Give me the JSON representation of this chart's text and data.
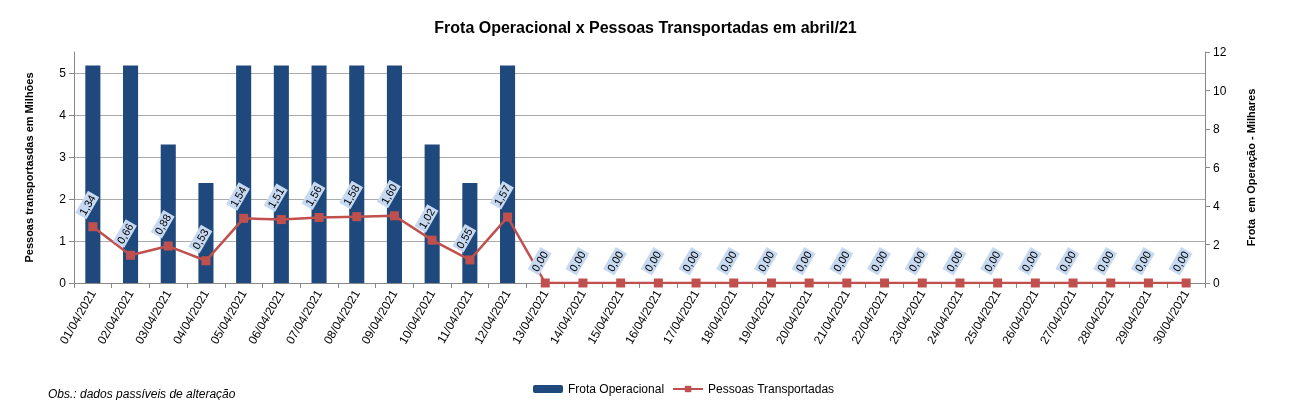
{
  "chart_data": {
    "type": "bar",
    "title": "Frota Operacional x Pessoas Transportadas em abril/21",
    "ylabel": "Pessoas transportasdas em Milhões",
    "y2label": "Frota  em Operação - Milhares",
    "categories": [
      "01/04/2021",
      "02/04/2021",
      "03/04/2021",
      "04/04/2021",
      "05/04/2021",
      "06/04/2021",
      "07/04/2021",
      "08/04/2021",
      "09/04/2021",
      "10/04/2021",
      "11/04/2021",
      "12/04/2021",
      "13/04/2021",
      "14/04/2021",
      "15/04/2021",
      "16/04/2021",
      "17/04/2021",
      "18/04/2021",
      "19/04/2021",
      "20/04/2021",
      "21/04/2021",
      "22/04/2021",
      "23/04/2021",
      "24/04/2021",
      "25/04/2021",
      "26/04/2021",
      "27/04/2021",
      "28/04/2021",
      "29/04/2021",
      "30/04/2021"
    ],
    "series": [
      {
        "name": "Frota Operacional",
        "axis": "y2",
        "color": "#1f497d",
        "values": [
          11.3,
          11.3,
          7.2,
          5.2,
          11.3,
          11.3,
          11.3,
          11.3,
          11.3,
          7.2,
          5.2,
          11.3,
          null,
          null,
          null,
          null,
          null,
          null,
          null,
          null,
          null,
          null,
          null,
          null,
          null,
          null,
          null,
          null,
          null,
          null
        ]
      },
      {
        "name": "Pessoas Transportadas",
        "type": "line",
        "color": "#c0504d",
        "marker": "square",
        "values": [
          1.34,
          0.66,
          0.88,
          0.53,
          1.54,
          1.51,
          1.56,
          1.58,
          1.6,
          1.02,
          0.55,
          1.57,
          0,
          0,
          0,
          0,
          0,
          0,
          0,
          0,
          0,
          0,
          0,
          0,
          0,
          0,
          0,
          0,
          0,
          0
        ],
        "value_labels": [
          "1,34",
          "0,66",
          "0,88",
          "0,53",
          "1,54",
          "1,51",
          "1,56",
          "1,58",
          "1,60",
          "1,02",
          "0,55",
          "1,57",
          "0,00",
          "0,00",
          "0,00",
          "0,00",
          "0,00",
          "0,00",
          "0,00",
          "0,00",
          "0,00",
          "0,00",
          "0,00",
          "0,00",
          "0,00",
          "0,00",
          "0,00",
          "0,00",
          "0,00",
          "0,00"
        ]
      }
    ],
    "ylim": [
      0,
      5.5
    ],
    "yticks": [
      0,
      1,
      2,
      3,
      4,
      5
    ],
    "y2lim": [
      0,
      12
    ],
    "y2ticks": [
      0,
      2,
      4,
      6,
      8,
      10,
      12
    ],
    "grid": "y",
    "legend": "bottom",
    "annotations": [
      "Obs.: dados passíveis de alteração"
    ]
  }
}
